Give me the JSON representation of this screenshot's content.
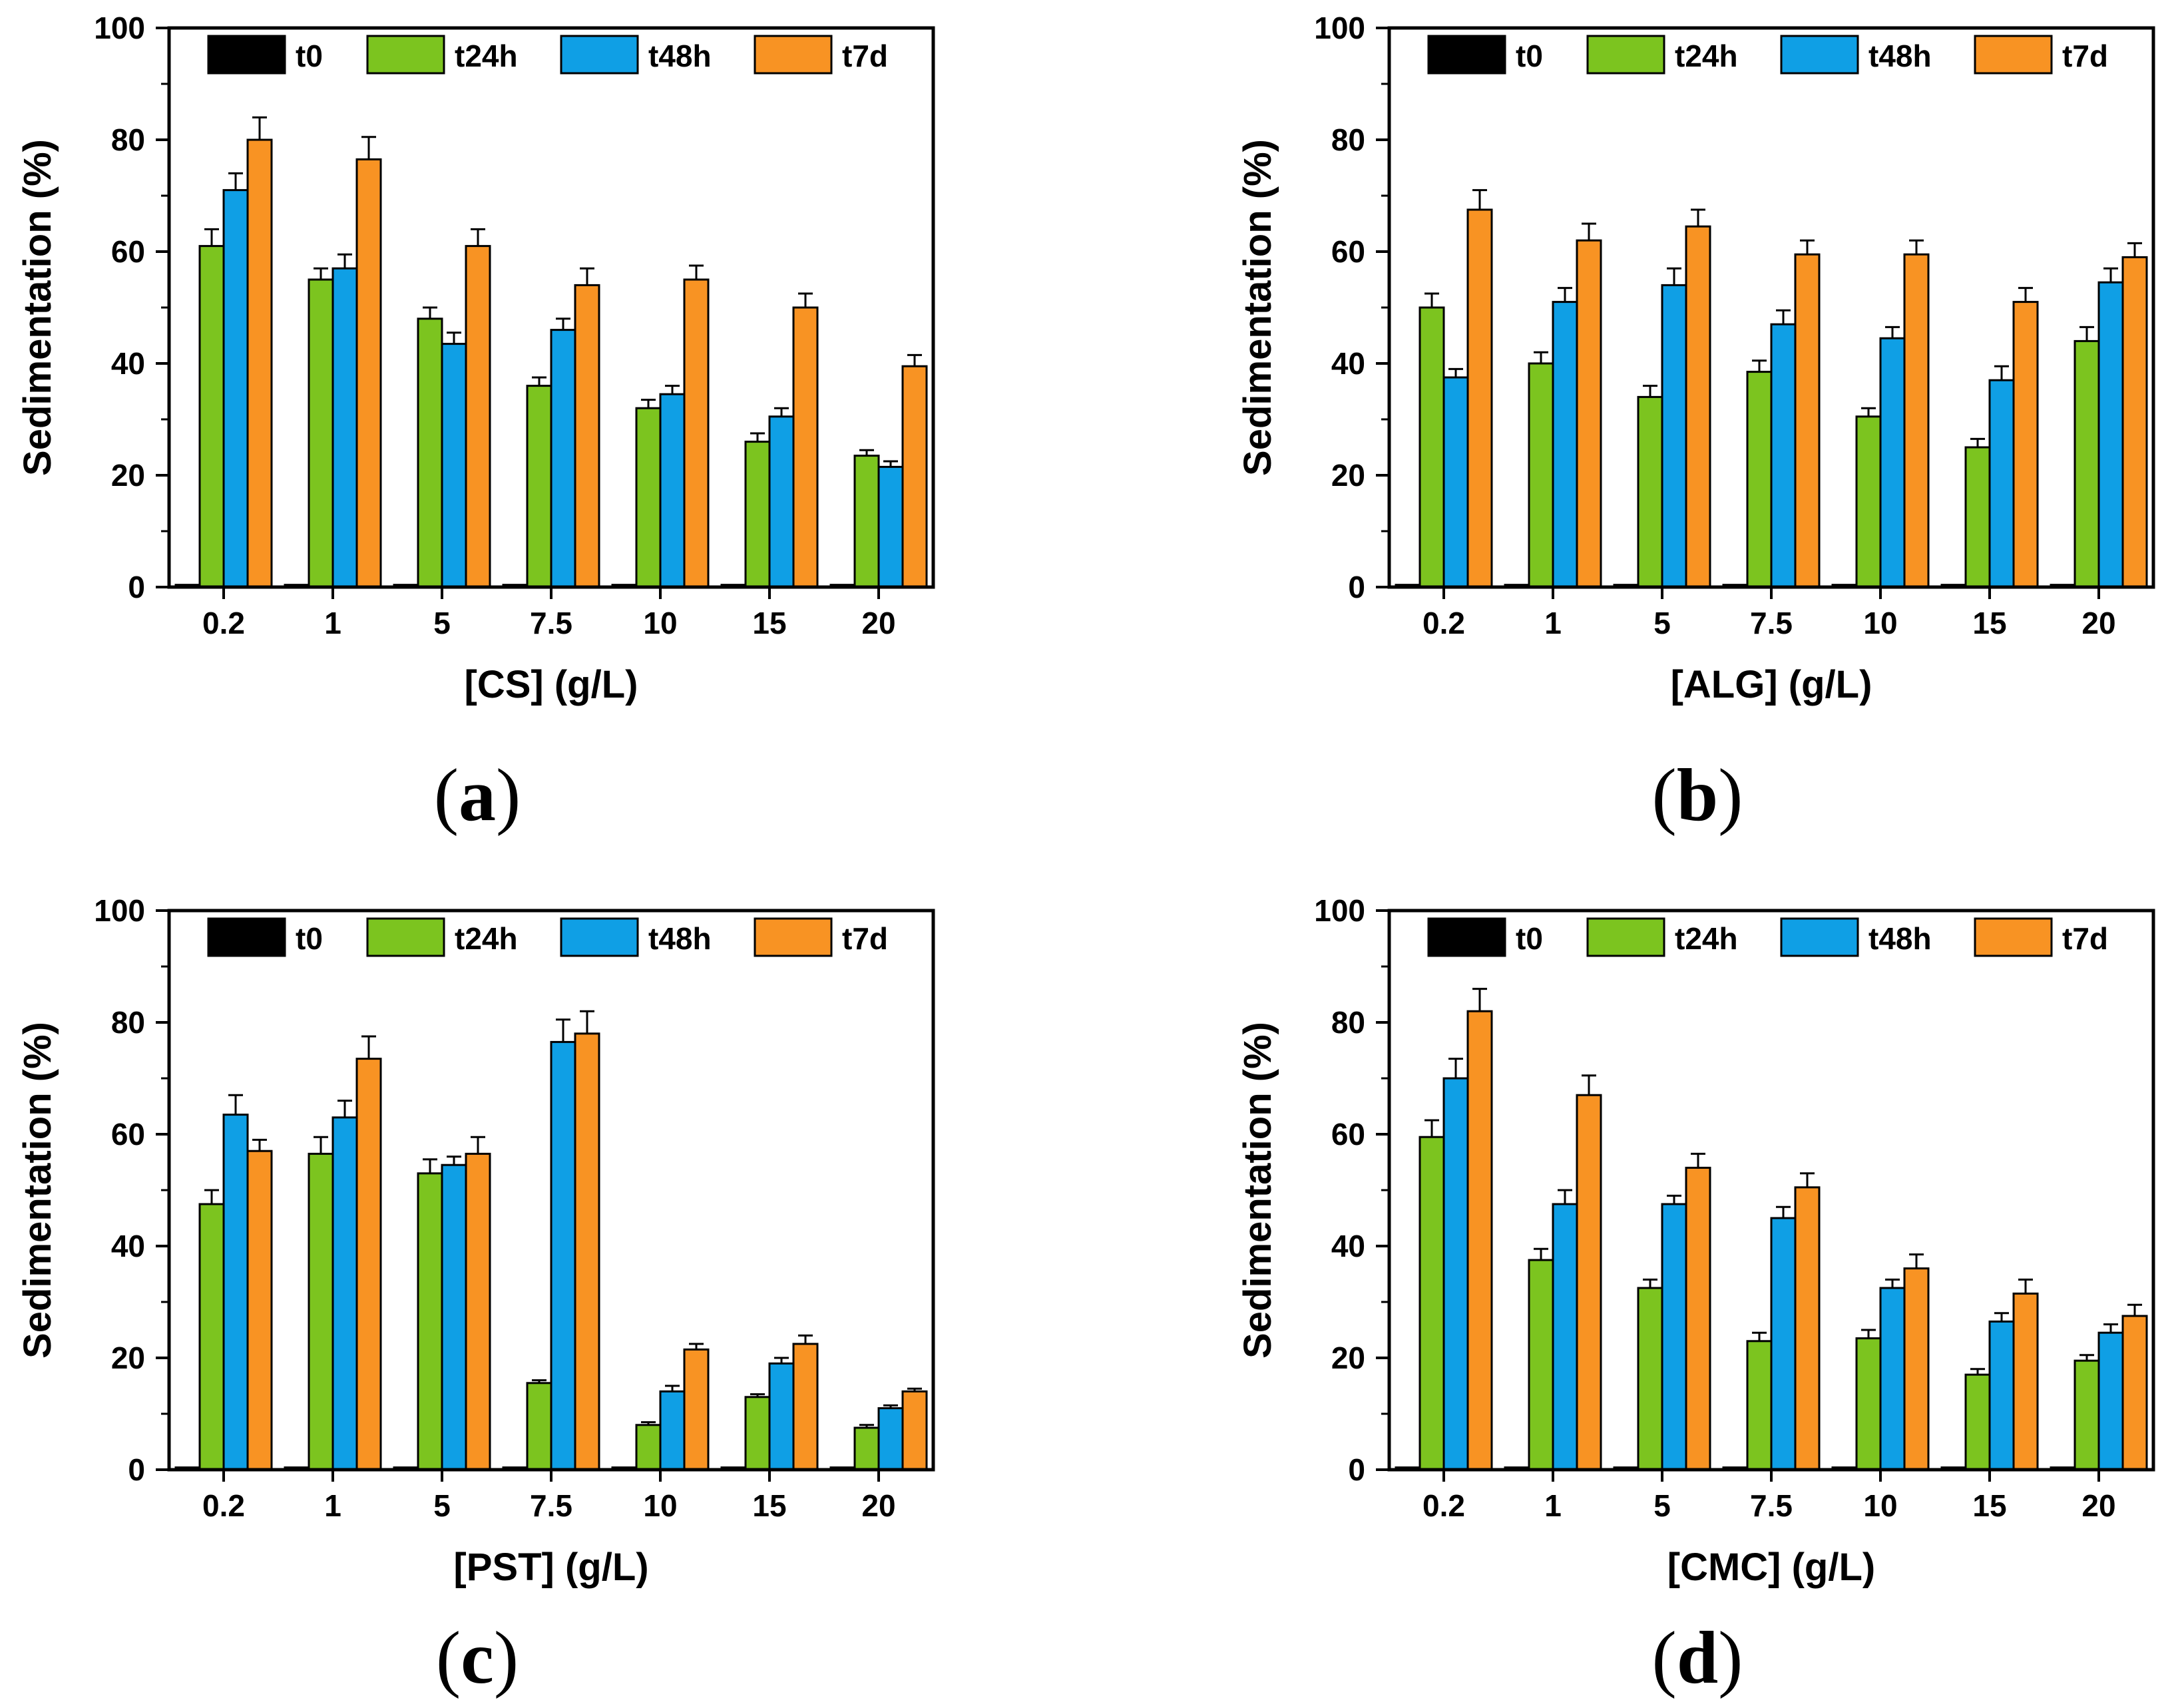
{
  "figure": {
    "background": "#ffffff",
    "series_colors": {
      "t0": "#000000",
      "t24h": "#7cc41f",
      "t48h": "#0f9fe5",
      "t7d": "#f89323"
    },
    "axis_color": "#000000",
    "legend_position": "top-center-inside"
  },
  "chart_data": [
    {
      "type": "bar",
      "panel_label_open": "(",
      "panel_letter": "a",
      "panel_label_close": ")",
      "xlabel": "[CS] (g/L)",
      "ylabel": "Sedimentation (%)",
      "ylim": [
        0,
        100
      ],
      "yticks": [
        0,
        20,
        40,
        60,
        80,
        100
      ],
      "grid": false,
      "categories": [
        "0.2",
        "1",
        "5",
        "7.5",
        "10",
        "15",
        "20"
      ],
      "series": [
        {
          "name": "t0",
          "color": "#000000",
          "values": [
            0.4,
            0.4,
            0.4,
            0.4,
            0.4,
            0.4,
            0.4
          ],
          "errors": [
            0,
            0,
            0,
            0,
            0,
            0,
            0
          ]
        },
        {
          "name": "t24h",
          "color": "#7cc41f",
          "values": [
            61,
            55,
            48,
            36,
            32,
            26,
            23.5
          ],
          "errors": [
            3,
            2,
            2,
            1.5,
            1.5,
            1.5,
            1
          ]
        },
        {
          "name": "t48h",
          "color": "#0f9fe5",
          "values": [
            71,
            57,
            43.5,
            46,
            34.5,
            30.5,
            21.5
          ],
          "errors": [
            3,
            2.5,
            2,
            2,
            1.5,
            1.5,
            1
          ]
        },
        {
          "name": "t7d",
          "color": "#f89323",
          "values": [
            80,
            76.5,
            61,
            54,
            55,
            50,
            39.5
          ],
          "errors": [
            4,
            4,
            3,
            3,
            2.5,
            2.5,
            2
          ]
        }
      ]
    },
    {
      "type": "bar",
      "panel_label_open": "(",
      "panel_letter": "b",
      "panel_label_close": ")",
      "xlabel": "[ALG] (g/L)",
      "ylabel": "Sedimentation (%)",
      "ylim": [
        0,
        100
      ],
      "yticks": [
        0,
        20,
        40,
        60,
        80,
        100
      ],
      "grid": false,
      "categories": [
        "0.2",
        "1",
        "5",
        "7.5",
        "10",
        "15",
        "20"
      ],
      "series": [
        {
          "name": "t0",
          "color": "#000000",
          "values": [
            0.4,
            0.4,
            0.4,
            0.4,
            0.4,
            0.4,
            0.4
          ],
          "errors": [
            0,
            0,
            0,
            0,
            0,
            0,
            0
          ]
        },
        {
          "name": "t24h",
          "color": "#7cc41f",
          "values": [
            50,
            40,
            34,
            38.5,
            30.5,
            25,
            44
          ],
          "errors": [
            2.5,
            2,
            2,
            2,
            1.5,
            1.5,
            2.5
          ]
        },
        {
          "name": "t48h",
          "color": "#0f9fe5",
          "values": [
            37.5,
            51,
            54,
            47,
            44.5,
            37,
            54.5
          ],
          "errors": [
            1.5,
            2.5,
            3,
            2.5,
            2,
            2.5,
            2.5
          ]
        },
        {
          "name": "t7d",
          "color": "#f89323",
          "values": [
            67.5,
            62,
            64.5,
            59.5,
            59.5,
            51,
            59
          ],
          "errors": [
            3.5,
            3,
            3,
            2.5,
            2.5,
            2.5,
            2.5
          ]
        }
      ]
    },
    {
      "type": "bar",
      "panel_label_open": "(",
      "panel_letter": "c",
      "panel_label_close": ")",
      "xlabel": "[PST] (g/L)",
      "ylabel": "Sedimentation (%)",
      "ylim": [
        0,
        100
      ],
      "yticks": [
        0,
        20,
        40,
        60,
        80,
        100
      ],
      "grid": false,
      "categories": [
        "0.2",
        "1",
        "5",
        "7.5",
        "10",
        "15",
        "20"
      ],
      "series": [
        {
          "name": "t0",
          "color": "#000000",
          "values": [
            0.4,
            0.4,
            0.4,
            0.4,
            0.4,
            0.4,
            0.4
          ],
          "errors": [
            0,
            0,
            0,
            0,
            0,
            0,
            0
          ]
        },
        {
          "name": "t24h",
          "color": "#7cc41f",
          "values": [
            47.5,
            56.5,
            53,
            15.5,
            8,
            13,
            7.5
          ],
          "errors": [
            2.5,
            3,
            2.5,
            0.5,
            0.5,
            0.5,
            0.5
          ]
        },
        {
          "name": "t48h",
          "color": "#0f9fe5",
          "values": [
            63.5,
            63,
            54.5,
            76.5,
            14,
            19,
            11
          ],
          "errors": [
            3.5,
            3,
            1.5,
            4,
            1,
            1,
            0.5
          ]
        },
        {
          "name": "t7d",
          "color": "#f89323",
          "values": [
            57,
            73.5,
            56.5,
            78,
            21.5,
            22.5,
            14
          ],
          "errors": [
            2,
            4,
            3,
            4,
            1,
            1.5,
            0.5
          ]
        }
      ]
    },
    {
      "type": "bar",
      "panel_label_open": "(",
      "panel_letter": "d",
      "panel_label_close": ")",
      "xlabel": "[CMC] (g/L)",
      "ylabel": "Sedimentation (%)",
      "ylim": [
        0,
        100
      ],
      "yticks": [
        0,
        20,
        40,
        60,
        80,
        100
      ],
      "grid": false,
      "categories": [
        "0.2",
        "1",
        "5",
        "7.5",
        "10",
        "15",
        "20"
      ],
      "series": [
        {
          "name": "t0",
          "color": "#000000",
          "values": [
            0.4,
            0.4,
            0.4,
            0.4,
            0.4,
            0.4,
            0.4
          ],
          "errors": [
            0,
            0,
            0,
            0,
            0,
            0,
            0
          ]
        },
        {
          "name": "t24h",
          "color": "#7cc41f",
          "values": [
            59.5,
            37.5,
            32.5,
            23,
            23.5,
            17,
            19.5
          ],
          "errors": [
            3,
            2,
            1.5,
            1.5,
            1.5,
            1,
            1
          ]
        },
        {
          "name": "t48h",
          "color": "#0f9fe5",
          "values": [
            70,
            47.5,
            47.5,
            45,
            32.5,
            26.5,
            24.5
          ],
          "errors": [
            3.5,
            2.5,
            1.5,
            2,
            1.5,
            1.5,
            1.5
          ]
        },
        {
          "name": "t7d",
          "color": "#f89323",
          "values": [
            82,
            67,
            54,
            50.5,
            36,
            31.5,
            27.5
          ],
          "errors": [
            4,
            3.5,
            2.5,
            2.5,
            2.5,
            2.5,
            2
          ]
        }
      ]
    }
  ]
}
